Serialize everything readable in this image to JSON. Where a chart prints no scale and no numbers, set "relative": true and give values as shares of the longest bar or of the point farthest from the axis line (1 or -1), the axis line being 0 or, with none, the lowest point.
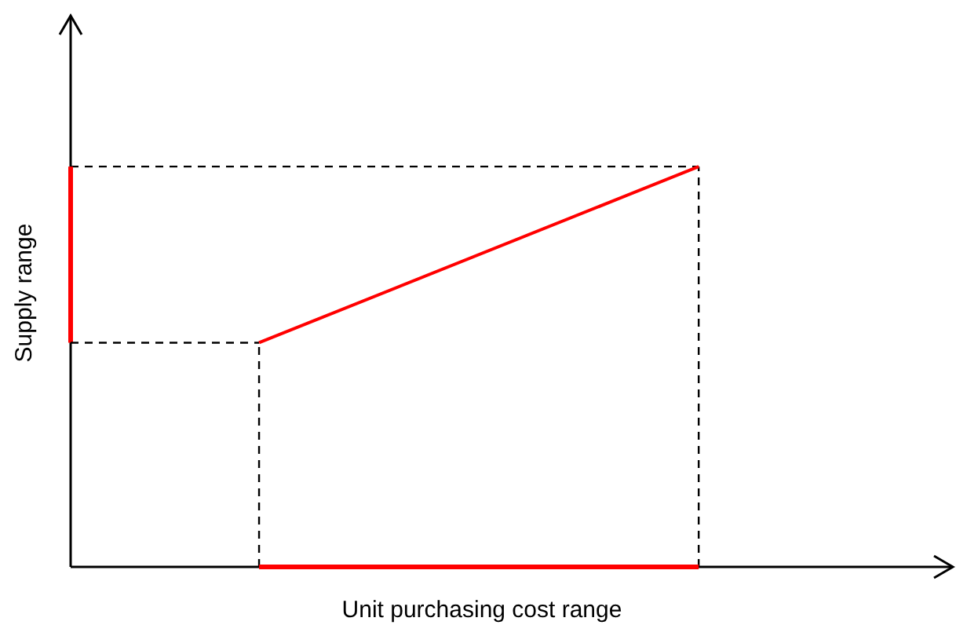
{
  "chart_data": {
    "type": "line",
    "xlabel": "Unit purchasing cost range",
    "ylabel": "Supply range",
    "categories": [
      null,
      null
    ],
    "relative": true,
    "marker": "none",
    "series": [
      {
        "color": "#ff0000",
        "values": [
          0.56,
          1
        ]
      }
    ],
    "ref_lines": [
      {
        "axis": "y",
        "value": 0.56,
        "color": "#000000",
        "line_style": "dashed"
      },
      {
        "axis": "y",
        "value": 0,
        "color": "#ff0000",
        "line_style": "solid"
      }
    ]
  }
}
